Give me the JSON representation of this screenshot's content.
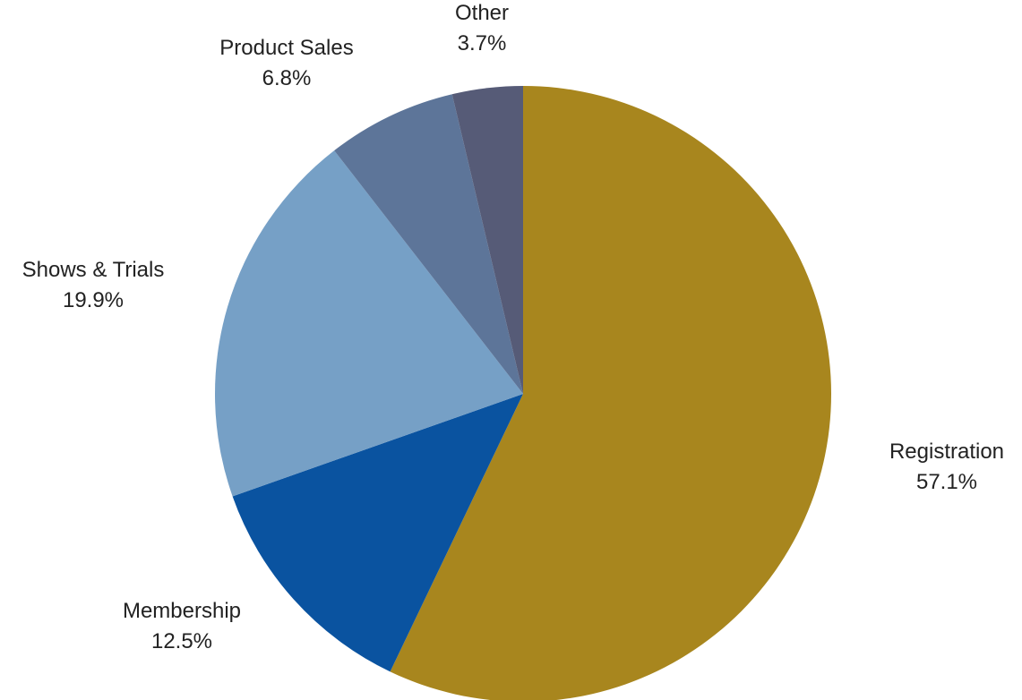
{
  "chart_data": {
    "type": "pie",
    "title": "",
    "start_angle_deg": 0,
    "direction": "clockwise",
    "slices": [
      {
        "name": "Registration",
        "value": 57.1,
        "label": "57.1%",
        "color": "#A8861E"
      },
      {
        "name": "Membership",
        "value": 12.5,
        "label": "12.5%",
        "color": "#0A53A0"
      },
      {
        "name": "Shows & Trials",
        "value": 19.9,
        "label": "19.9%",
        "color": "#76A0C6"
      },
      {
        "name": "Product Sales",
        "value": 6.8,
        "label": "6.8%",
        "color": "#5D7599"
      },
      {
        "name": "Other",
        "value": 3.7,
        "label": "3.7%",
        "color": "#565B77"
      }
    ]
  }
}
